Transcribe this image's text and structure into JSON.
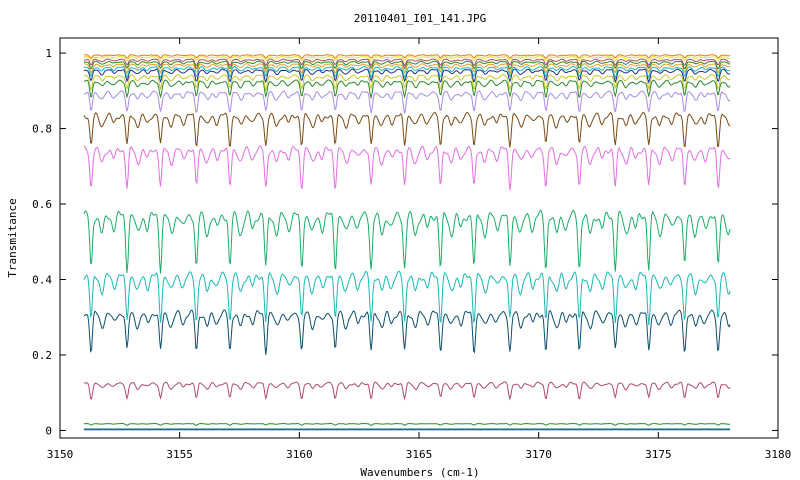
{
  "chart_data": {
    "type": "line",
    "title": "20110401_I01_141.JPG",
    "xlabel": "Wavenumbers (cm-1)",
    "ylabel": "Transmitance",
    "xlim": [
      3150,
      3180
    ],
    "ylim": [
      -0.02,
      1.04
    ],
    "x_ticks": [
      3150,
      3155,
      3160,
      3165,
      3170,
      3175,
      3180
    ],
    "y_ticks": [
      0,
      0.2,
      0.4,
      0.6,
      0.8,
      1
    ],
    "x_range": [
      3151,
      3178
    ],
    "line_centers": [
      3151.3,
      3152.8,
      3154.2,
      3155.7,
      3157.1,
      3158.6,
      3160.1,
      3161.5,
      3163.0,
      3164.4,
      3165.9,
      3167.3,
      3168.8,
      3170.3,
      3171.7,
      3173.2,
      3174.6,
      3176.1,
      3177.5
    ],
    "grid": false,
    "legend": "none",
    "series": [
      {
        "color": "#1e2f8a",
        "baseline": 0.002,
        "depth": 0.0
      },
      {
        "color": "#1f9a8a",
        "baseline": 0.004,
        "depth": 0.0
      },
      {
        "color": "#2a8a2a",
        "baseline": 0.018,
        "depth": 0.004
      },
      {
        "color": "#b04a6a",
        "baseline": 0.125,
        "depth": 0.04
      },
      {
        "color": "#0d4f6f",
        "baseline": 0.31,
        "depth": 0.1
      },
      {
        "color": "#1bb8b8",
        "baseline": 0.41,
        "depth": 0.12
      },
      {
        "color": "#1aae64",
        "baseline": 0.57,
        "depth": 0.14
      },
      {
        "color": "#e66ee6",
        "baseline": 0.745,
        "depth": 0.1
      },
      {
        "color": "#7a4a14",
        "baseline": 0.835,
        "depth": 0.08
      },
      {
        "color": "#a98ae6",
        "baseline": 0.895,
        "depth": 0.05
      },
      {
        "color": "#2a8a2a",
        "baseline": 0.925,
        "depth": 0.04
      },
      {
        "color": "#c8c82a",
        "baseline": 0.94,
        "depth": 0.035
      },
      {
        "color": "#1e2f8a",
        "baseline": 0.955,
        "depth": 0.03
      },
      {
        "color": "#1bb8b8",
        "baseline": 0.962,
        "depth": 0.025
      },
      {
        "color": "#e6a02a",
        "baseline": 0.97,
        "depth": 0.022
      },
      {
        "color": "#2a8a2a",
        "baseline": 0.977,
        "depth": 0.018
      },
      {
        "color": "#b04a6a",
        "baseline": 0.983,
        "depth": 0.015
      },
      {
        "color": "#e6e62a",
        "baseline": 0.99,
        "depth": 0.01
      },
      {
        "color": "#e67a1a",
        "baseline": 0.995,
        "depth": 0.008
      }
    ]
  }
}
